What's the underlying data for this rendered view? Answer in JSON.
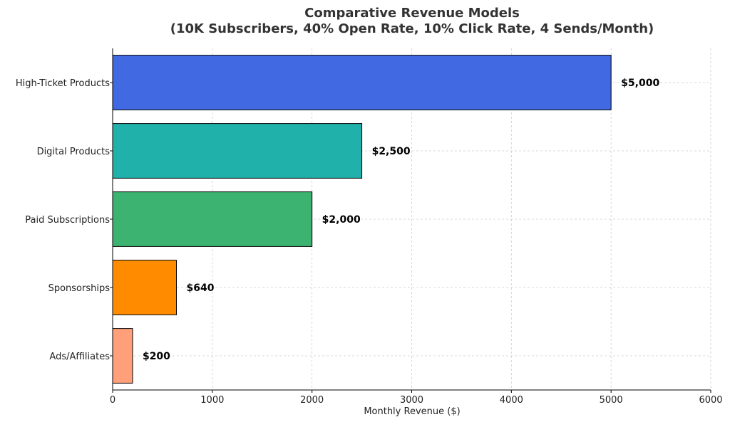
{
  "chart_data": {
    "type": "bar",
    "orientation": "horizontal",
    "title": "Comparative Revenue Models",
    "subtitle": "(10K Subscribers, 40% Open Rate, 10% Click Rate, 4 Sends/Month)",
    "xlabel": "Monthly Revenue ($)",
    "ylabel": "",
    "xlim": [
      0,
      6000
    ],
    "xticks": [
      0,
      1000,
      2000,
      3000,
      4000,
      5000,
      6000
    ],
    "xtick_labels": [
      "0",
      "1000",
      "2000",
      "3000",
      "4000",
      "5000",
      "6000"
    ],
    "grid": true,
    "categories": [
      "High-Ticket Products",
      "Digital Products",
      "Paid Subscriptions",
      "Sponsorships",
      "Ads/Affiliates"
    ],
    "values": [
      5000,
      2500,
      2000,
      640,
      200
    ],
    "value_labels": [
      "$5,000",
      "$2,500",
      "$2,000",
      "$640",
      "$200"
    ],
    "colors": [
      "#4169e1",
      "#20b2aa",
      "#3cb371",
      "#ff8c00",
      "#ffa07a"
    ]
  }
}
